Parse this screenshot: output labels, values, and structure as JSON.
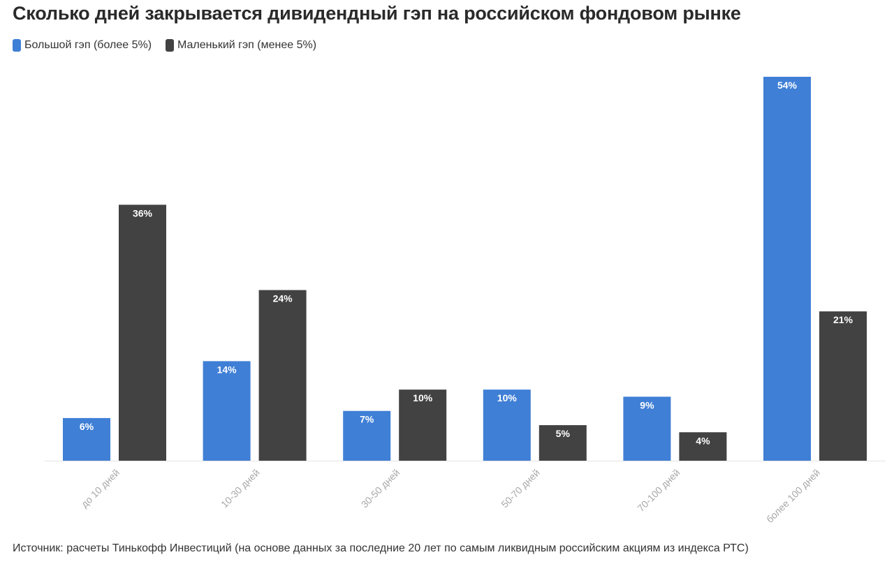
{
  "title": "Сколько дней закрывается дивидендный гэп на российском фондовом рынке",
  "legend": [
    {
      "label": "Большой гэп (более 5%)",
      "color": "#3f7fd6"
    },
    {
      "label": "Маленький гэп (менее 5%)",
      "color": "#424242"
    }
  ],
  "source": "Источник: расчеты Тинькофф Инвестиций (на основе данных за последние 20 лет по самым ликвидным российским акциям из индекса РТС)",
  "chart_data": {
    "type": "bar",
    "categories": [
      "до 10 дней",
      "10-30 дней",
      "30-50 дней",
      "50-70 дней",
      "70-100 дней",
      "более 100 дней"
    ],
    "series": [
      {
        "name": "Большой гэп (более 5%)",
        "color": "#3f7fd6",
        "values": [
          6,
          14,
          7,
          10,
          9,
          54
        ],
        "labels": [
          "6%",
          "14%",
          "7%",
          "10%",
          "9%",
          "54%"
        ]
      },
      {
        "name": "Маленький гэп (менее 5%)",
        "color": "#424242",
        "values": [
          36,
          24,
          10,
          5,
          4,
          21
        ],
        "labels": [
          "36%",
          "24%",
          "10%",
          "5%",
          "4%",
          "21%"
        ]
      }
    ],
    "ylim": [
      0,
      54
    ],
    "grid": false,
    "legend_position": "top-left"
  }
}
